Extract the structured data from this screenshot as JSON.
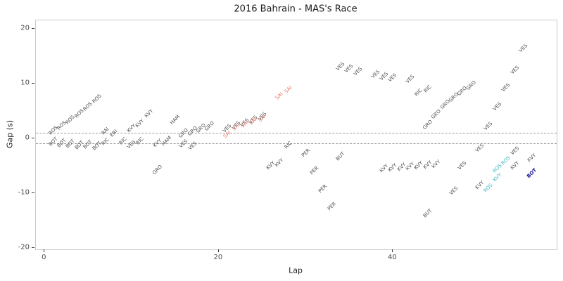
{
  "chart_data": {
    "type": "scatter",
    "title": "2016 Bahrain - MAS's Race",
    "xlabel": "Lap",
    "ylabel": "Gap (s)",
    "xlim": [
      -1,
      58.8
    ],
    "ylim": [
      -20.3,
      21.5
    ],
    "x_ticks": [
      0,
      20,
      40
    ],
    "y_ticks": [
      -20,
      -10,
      0,
      10,
      20
    ],
    "reference_lines": [
      1,
      -1
    ],
    "grid": false,
    "legend": "none",
    "marker": "rotated driver-code text labels",
    "palette": {
      "default": "#4d4d4d",
      "red": "#e8796b",
      "cyan": "#43b7c0",
      "navy": "#14148c"
    },
    "points": [
      {
        "driver": "ROS",
        "lap": 1,
        "gap": 1.4,
        "color": "default"
      },
      {
        "driver": "ROS",
        "lap": 2,
        "gap": 2.3,
        "color": "default"
      },
      {
        "driver": "ROS",
        "lap": 3,
        "gap": 3.3,
        "color": "default"
      },
      {
        "driver": "ROS",
        "lap": 4,
        "gap": 4.5,
        "color": "default"
      },
      {
        "driver": "ROS",
        "lap": 5,
        "gap": 5.7,
        "color": "default"
      },
      {
        "driver": "ROS",
        "lap": 6,
        "gap": 7.1,
        "color": "default"
      },
      {
        "driver": "BOT",
        "lap": 1,
        "gap": -0.7,
        "color": "default"
      },
      {
        "driver": "BOT",
        "lap": 2,
        "gap": -0.9,
        "color": "default"
      },
      {
        "driver": "BOT",
        "lap": 3,
        "gap": -1.1,
        "color": "default"
      },
      {
        "driver": "BOT",
        "lap": 4,
        "gap": -1.3,
        "color": "default"
      },
      {
        "driver": "BOT",
        "lap": 5,
        "gap": -1.2,
        "color": "default"
      },
      {
        "driver": "BOT",
        "lap": 6,
        "gap": -1.5,
        "color": "default"
      },
      {
        "driver": "RAI",
        "lap": 7,
        "gap": 1.2,
        "color": "default"
      },
      {
        "driver": "ERI",
        "lap": 8,
        "gap": 0.8,
        "color": "default"
      },
      {
        "driver": "RIC",
        "lap": 7,
        "gap": -0.7,
        "color": "default"
      },
      {
        "driver": "RIC",
        "lap": 9,
        "gap": -0.6,
        "color": "default"
      },
      {
        "driver": "RIC",
        "lap": 11,
        "gap": -0.5,
        "color": "default"
      },
      {
        "driver": "VES",
        "lap": 10,
        "gap": -1.2,
        "color": "default"
      },
      {
        "driver": "KVY",
        "lap": 10,
        "gap": 1.7,
        "color": "default"
      },
      {
        "driver": "KVY",
        "lap": 11,
        "gap": 2.7,
        "color": "default"
      },
      {
        "driver": "KVY",
        "lap": 12,
        "gap": 4.4,
        "color": "default"
      },
      {
        "driver": "KVY",
        "lap": 13,
        "gap": -0.9,
        "color": "default"
      },
      {
        "driver": "HAM",
        "lap": 14,
        "gap": -0.6,
        "color": "default"
      },
      {
        "driver": "HAM",
        "lap": 15,
        "gap": 3.3,
        "color": "default"
      },
      {
        "driver": "GRO",
        "lap": 13,
        "gap": -5.8,
        "color": "default"
      },
      {
        "driver": "GRO",
        "lap": 16,
        "gap": 0.9,
        "color": "default"
      },
      {
        "driver": "GRO",
        "lap": 17,
        "gap": 1.3,
        "color": "default"
      },
      {
        "driver": "GRO",
        "lap": 18,
        "gap": 1.7,
        "color": "default"
      },
      {
        "driver": "GRO",
        "lap": 19,
        "gap": 2.1,
        "color": "default"
      },
      {
        "driver": "VES",
        "lap": 16,
        "gap": -1.1,
        "color": "default"
      },
      {
        "driver": "VES",
        "lap": 17,
        "gap": -1.4,
        "color": "default"
      },
      {
        "driver": "VES",
        "lap": 21,
        "gap": 1.8,
        "color": "default"
      },
      {
        "driver": "VES",
        "lap": 22,
        "gap": 2.3,
        "color": "default"
      },
      {
        "driver": "VES",
        "lap": 23,
        "gap": 2.8,
        "color": "default"
      },
      {
        "driver": "VES",
        "lap": 24,
        "gap": 3.3,
        "color": "default"
      },
      {
        "driver": "VES",
        "lap": 25,
        "gap": 3.9,
        "color": "default"
      },
      {
        "driver": "SAI",
        "lap": 21,
        "gap": 0.6,
        "color": "red"
      },
      {
        "driver": "SAI",
        "lap": 22,
        "gap": 2.0,
        "color": "red"
      },
      {
        "driver": "SAI",
        "lap": 23,
        "gap": 2.5,
        "color": "red"
      },
      {
        "driver": "SAI",
        "lap": 24,
        "gap": 3.0,
        "color": "red"
      },
      {
        "driver": "SAI",
        "lap": 25,
        "gap": 3.5,
        "color": "red"
      },
      {
        "driver": "SAI",
        "lap": 27,
        "gap": 7.6,
        "color": "red"
      },
      {
        "driver": "SAI",
        "lap": 28,
        "gap": 8.8,
        "color": "red"
      },
      {
        "driver": "RIC",
        "lap": 28,
        "gap": -1.3,
        "color": "default"
      },
      {
        "driver": "KVY",
        "lap": 26,
        "gap": -5.1,
        "color": "default"
      },
      {
        "driver": "KVY",
        "lap": 27,
        "gap": -4.5,
        "color": "default"
      },
      {
        "driver": "PER",
        "lap": 30,
        "gap": -2.7,
        "color": "default"
      },
      {
        "driver": "PER",
        "lap": 31,
        "gap": -5.9,
        "color": "default"
      },
      {
        "driver": "PER",
        "lap": 32,
        "gap": -9.3,
        "color": "default"
      },
      {
        "driver": "PER",
        "lap": 33,
        "gap": -12.5,
        "color": "default"
      },
      {
        "driver": "BUT",
        "lap": 34,
        "gap": -3.4,
        "color": "default"
      },
      {
        "driver": "VES",
        "lap": 34,
        "gap": 13.0,
        "color": "default"
      },
      {
        "driver": "VES",
        "lap": 35,
        "gap": 12.6,
        "color": "default"
      },
      {
        "driver": "VES",
        "lap": 36,
        "gap": 12.2,
        "color": "default"
      },
      {
        "driver": "VES",
        "lap": 38,
        "gap": 11.6,
        "color": "default"
      },
      {
        "driver": "VES",
        "lap": 39,
        "gap": 11.2,
        "color": "default"
      },
      {
        "driver": "VES",
        "lap": 40,
        "gap": 11.0,
        "color": "default"
      },
      {
        "driver": "VES",
        "lap": 42,
        "gap": 10.7,
        "color": "default"
      },
      {
        "driver": "RIC",
        "lap": 43,
        "gap": 8.3,
        "color": "default"
      },
      {
        "driver": "RIC",
        "lap": 44,
        "gap": 8.9,
        "color": "default"
      },
      {
        "driver": "GRO",
        "lap": 44,
        "gap": 2.4,
        "color": "default"
      },
      {
        "driver": "GRO",
        "lap": 45,
        "gap": 4.3,
        "color": "default"
      },
      {
        "driver": "GRO",
        "lap": 46,
        "gap": 6.1,
        "color": "default"
      },
      {
        "driver": "GRO",
        "lap": 47,
        "gap": 7.4,
        "color": "default"
      },
      {
        "driver": "GRO",
        "lap": 48,
        "gap": 8.5,
        "color": "default"
      },
      {
        "driver": "GRO",
        "lap": 49,
        "gap": 9.6,
        "color": "default"
      },
      {
        "driver": "KVY",
        "lap": 39,
        "gap": -5.6,
        "color": "default"
      },
      {
        "driver": "KVY",
        "lap": 40,
        "gap": -5.4,
        "color": "default"
      },
      {
        "driver": "KVY",
        "lap": 41,
        "gap": -5.3,
        "color": "default"
      },
      {
        "driver": "KVY",
        "lap": 42,
        "gap": -5.2,
        "color": "default"
      },
      {
        "driver": "KVY",
        "lap": 43,
        "gap": -5.0,
        "color": "default"
      },
      {
        "driver": "KVY",
        "lap": 44,
        "gap": -4.9,
        "color": "default"
      },
      {
        "driver": "KVY",
        "lap": 45,
        "gap": -4.8,
        "color": "default"
      },
      {
        "driver": "BUT",
        "lap": 44,
        "gap": -13.7,
        "color": "default"
      },
      {
        "driver": "VES",
        "lap": 47,
        "gap": -9.6,
        "color": "default"
      },
      {
        "driver": "VES",
        "lap": 48,
        "gap": -5.1,
        "color": "default"
      },
      {
        "driver": "VES",
        "lap": 50,
        "gap": -1.9,
        "color": "default"
      },
      {
        "driver": "VES",
        "lap": 51,
        "gap": 2.2,
        "color": "default"
      },
      {
        "driver": "VES",
        "lap": 52,
        "gap": 5.7,
        "color": "default"
      },
      {
        "driver": "VES",
        "lap": 53,
        "gap": 9.2,
        "color": "default"
      },
      {
        "driver": "VES",
        "lap": 54,
        "gap": 12.4,
        "color": "default"
      },
      {
        "driver": "VES",
        "lap": 55,
        "gap": 16.4,
        "color": "default"
      },
      {
        "driver": "KVY",
        "lap": 50,
        "gap": -8.6,
        "color": "default"
      },
      {
        "driver": "ROS",
        "lap": 51,
        "gap": -9.2,
        "color": "cyan"
      },
      {
        "driver": "KVY",
        "lap": 52,
        "gap": -7.2,
        "color": "cyan"
      },
      {
        "driver": "ROS",
        "lap": 52,
        "gap": -5.6,
        "color": "cyan"
      },
      {
        "driver": "ROS",
        "lap": 53,
        "gap": -4.1,
        "color": "cyan"
      },
      {
        "driver": "KVY",
        "lap": 54,
        "gap": -5.0,
        "color": "default"
      },
      {
        "driver": "VES",
        "lap": 54,
        "gap": -2.4,
        "color": "default"
      },
      {
        "driver": "KVY",
        "lap": 56,
        "gap": -3.6,
        "color": "default"
      },
      {
        "driver": "BOT",
        "lap": 56,
        "gap": -6.4,
        "color": "navy"
      }
    ]
  }
}
